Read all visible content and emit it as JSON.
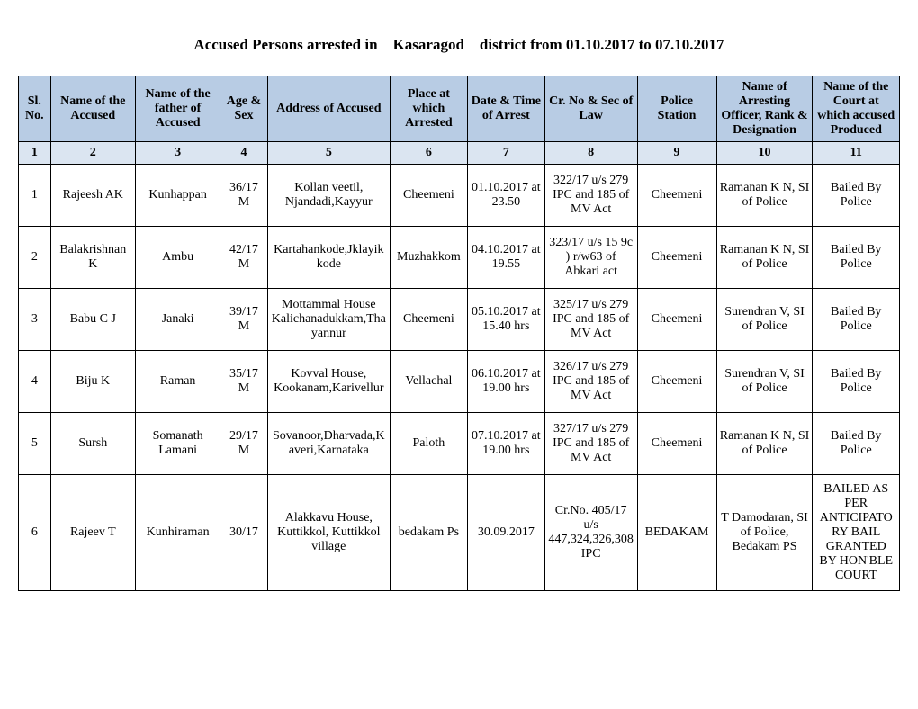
{
  "title_parts": {
    "a": "Accused Persons arrested in",
    "b": "Kasaragod",
    "c": "district from  01.10.2017 to 07.10.2017"
  },
  "headers": [
    "Sl. No.",
    "Name of the Accused",
    "Name of the father of Accused",
    "Age & Sex",
    "Address of Accused",
    "Place at which Arrested",
    "Date & Time of Arrest",
    "Cr. No & Sec of Law",
    "Police Station",
    "Name of Arresting Officer, Rank & Designation",
    "Name of the Court at which accused Produced"
  ],
  "numrow": [
    "1",
    "2",
    "3",
    "4",
    "5",
    "6",
    "7",
    "8",
    "9",
    "10",
    "11"
  ],
  "rows": [
    {
      "sl": "1",
      "name": "Rajeesh AK",
      "father": "Kunhappan",
      "age": "36/17 M",
      "address": "Kollan veetil, Njandadi,Kayyur",
      "place": "Cheemeni",
      "datetime": "01.10.2017 at 23.50",
      "crno": "322/17 u/s 279 IPC and  185 of MV Act",
      "station": "Cheemeni",
      "officer": "Ramanan K N, SI of Police",
      "court": "Bailed By Police"
    },
    {
      "sl": "2",
      "name": "Balakrishnan K",
      "father": "Ambu",
      "age": "42/17 M",
      "address": "Kartahankode,Jklayikkode",
      "place": "Muzhakkom",
      "datetime": "04.10.2017 at 19.55",
      "crno": "323/17 u/s 15 9c ) r/w63 of Abkari act",
      "station": "Cheemeni",
      "officer": "Ramanan K N, SI of Police",
      "court": "Bailed By Police"
    },
    {
      "sl": "3",
      "name": "Babu C J",
      "father": "Janaki",
      "age": "39/17 M",
      "address": "Mottammal House Kalichanadukkam,Thayannur",
      "place": "Cheemeni",
      "datetime": "05.10.2017 at 15.40 hrs",
      "crno": "325/17 u/s 279 IPC and  185 of MV Act",
      "station": "Cheemeni",
      "officer": "Surendran V, SI of Police",
      "court": "Bailed By Police"
    },
    {
      "sl": "4",
      "name": "Biju K",
      "father": "Raman",
      "age": "35/17 M",
      "address": "Kovval House, Kookanam,Karivellur",
      "place": "Vellachal",
      "datetime": "06.10.2017 at 19.00 hrs",
      "crno": "326/17 u/s 279 IPC and  185 of MV Act",
      "station": "Cheemeni",
      "officer": "Surendran V, SI of Police",
      "court": "Bailed By Police"
    },
    {
      "sl": "5",
      "name": "Sursh",
      "father": "Somanath Lamani",
      "age": "29/17 M",
      "address": "Sovanoor,Dharvada,Kaveri,Karnataka",
      "place": "Paloth",
      "datetime": "07.10.2017 at 19.00 hrs",
      "crno": "327/17 u/s 279 IPC and  185 of MV Act",
      "station": "Cheemeni",
      "officer": "Ramanan K N, SI of Police",
      "court": "Bailed By Police"
    },
    {
      "sl": "6",
      "name": "Rajeev T",
      "father": "Kunhiraman",
      "age": "30/17",
      "address": "Alakkavu House, Kuttikkol, Kuttikkol village",
      "place": "bedakam Ps",
      "datetime": "30.09.2017",
      "crno": "Cr.No. 405/17 u/s 447,324,326,308 IPC",
      "station": "BEDAKAM",
      "officer": "T Damodaran, SI of Police, Bedakam PS",
      "court": "BAILED AS PER ANTICIPATORY BAIL GRANTED BY HON'BLE COURT"
    }
  ]
}
